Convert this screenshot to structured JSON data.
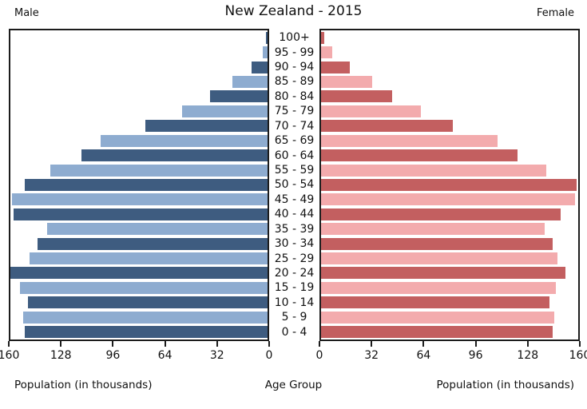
{
  "header": {
    "left": "Male",
    "title": "New Zealand - 2015",
    "right": "Female"
  },
  "footer": {
    "left": "Population (in thousands)",
    "center": "Age Group",
    "right": "Population (in thousands)"
  },
  "colors": {
    "male_dark": "#3e5c80",
    "male_light": "#8eacd0",
    "female_dark": "#c35f60",
    "female_light": "#f3abad",
    "axis_line": "#1c1c1c"
  },
  "axis": {
    "max": 160,
    "tick_interval": 32,
    "male_ticks": [
      160,
      128,
      96,
      64,
      32,
      0
    ],
    "female_ticks": [
      0,
      32,
      64,
      96,
      128,
      160
    ]
  },
  "chart_data": {
    "type": "bar",
    "subtype": "population-pyramid",
    "title": "New Zealand - 2015",
    "center_label": "Age Group",
    "xlabel_left": "Population (in thousands)",
    "xlabel_right": "Population (in thousands)",
    "xlim": [
      0,
      160
    ],
    "grid": false,
    "categories": [
      "100+",
      "95 - 99",
      "90 - 94",
      "85 - 89",
      "80 - 84",
      "75 - 79",
      "70 - 74",
      "65 - 69",
      "60 - 64",
      "55 - 59",
      "50 - 54",
      "45 - 49",
      "40 - 44",
      "35 - 39",
      "30 - 34",
      "25 - 29",
      "20 - 24",
      "15 - 19",
      "10 - 14",
      "5 - 9",
      "0 - 4"
    ],
    "series": [
      {
        "name": "Male",
        "values": [
          1,
          3,
          10,
          22,
          36,
          53,
          76,
          104,
          116,
          135,
          151,
          159,
          158,
          137,
          143,
          148,
          161,
          154,
          149,
          152,
          151
        ]
      },
      {
        "name": "Female",
        "values": [
          2,
          7,
          18,
          32,
          44,
          62,
          82,
          110,
          122,
          140,
          159,
          158,
          149,
          139,
          144,
          147,
          152,
          146,
          142,
          145,
          144
        ]
      }
    ]
  }
}
